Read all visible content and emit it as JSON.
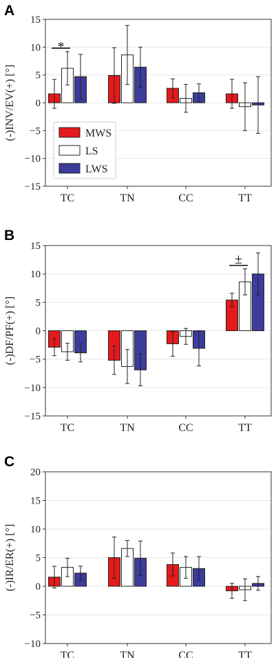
{
  "colors": {
    "MWS": "#e41a1c",
    "LS": "#ffffff",
    "LWS": "#3c3c9c"
  },
  "chart_data": [
    {
      "type": "bar",
      "panel": "A",
      "ylabel": "(-)INV/EV(+) [°]",
      "categories": [
        "TC",
        "TN",
        "CC",
        "TT"
      ],
      "ylim": [
        -15,
        15
      ],
      "yticks": [
        -15,
        -10,
        -5,
        0,
        5,
        10,
        15
      ],
      "grid": true,
      "legend": {
        "position": "lower-left",
        "entries": [
          "MWS",
          "LS",
          "LWS"
        ]
      },
      "series": [
        {
          "name": "MWS",
          "values": [
            1.6,
            4.9,
            2.6,
            1.6
          ],
          "errors": [
            2.6,
            5.0,
            1.7,
            2.6
          ]
        },
        {
          "name": "LS",
          "values": [
            6.2,
            8.6,
            0.8,
            -0.7
          ],
          "errors": [
            3.0,
            5.3,
            2.5,
            4.3
          ]
        },
        {
          "name": "LWS",
          "values": [
            4.7,
            6.4,
            1.8,
            -0.4
          ],
          "errors": [
            4.0,
            3.6,
            1.6,
            5.1
          ]
        }
      ],
      "annotations": [
        {
          "text": "*",
          "category": "TC"
        }
      ]
    },
    {
      "type": "bar",
      "panel": "B",
      "ylabel": "(-)DF/PF(+) [°]",
      "categories": [
        "TC",
        "TN",
        "CC",
        "TT"
      ],
      "ylim": [
        -15,
        15
      ],
      "yticks": [
        -15,
        -10,
        -5,
        0,
        5,
        10,
        15
      ],
      "grid": true,
      "series": [
        {
          "name": "MWS",
          "values": [
            -2.9,
            -5.2,
            -2.3,
            5.4
          ],
          "errors": [
            1.5,
            2.5,
            2.2,
            1.2
          ]
        },
        {
          "name": "LS",
          "values": [
            -3.7,
            -6.3,
            -1.0,
            8.6
          ],
          "errors": [
            1.5,
            3.0,
            1.4,
            2.3
          ]
        },
        {
          "name": "LWS",
          "values": [
            -3.9,
            -6.9,
            -3.1,
            10.0
          ],
          "errors": [
            1.6,
            2.8,
            3.1,
            3.7
          ]
        }
      ],
      "annotations": [
        {
          "text": "±",
          "category": "TT"
        }
      ]
    },
    {
      "type": "bar",
      "panel": "C",
      "ylabel": "(-)IR/ER(+) [°]",
      "categories": [
        "TC",
        "TN",
        "CC",
        "TT"
      ],
      "ylim": [
        -10,
        20
      ],
      "yticks": [
        -10,
        -5,
        0,
        5,
        10,
        15,
        20
      ],
      "grid": true,
      "series": [
        {
          "name": "MWS",
          "values": [
            1.6,
            5.0,
            3.8,
            -0.8
          ],
          "errors": [
            1.9,
            3.6,
            2.0,
            1.3
          ]
        },
        {
          "name": "LS",
          "values": [
            3.3,
            6.6,
            3.3,
            -0.6
          ],
          "errors": [
            1.6,
            1.4,
            1.9,
            1.9
          ]
        },
        {
          "name": "LWS",
          "values": [
            2.3,
            4.9,
            3.1,
            0.5
          ],
          "errors": [
            1.2,
            3.0,
            2.1,
            1.2
          ]
        }
      ]
    }
  ]
}
